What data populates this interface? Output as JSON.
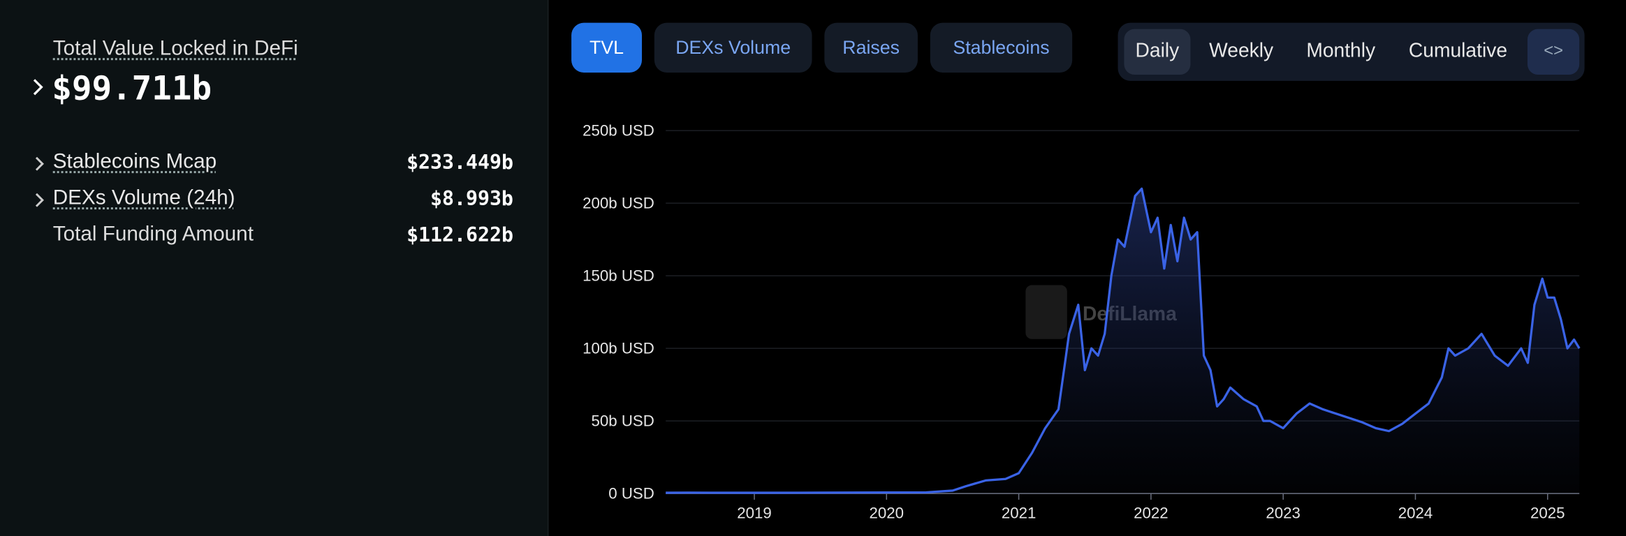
{
  "sidebar": {
    "title": "Total Value Locked in DeFi",
    "value": "$99.711b",
    "rows": [
      {
        "label": "Stablecoins Mcap",
        "value": "$233.449b"
      },
      {
        "label": "DEXs Volume (24h)",
        "value": "$8.993b"
      },
      {
        "label": "Total Funding Amount",
        "value": "$112.622b"
      }
    ]
  },
  "tabs": [
    "TVL",
    "DEXs Volume",
    "Raises",
    "Stablecoins"
  ],
  "periods": [
    "Daily",
    "Weekly",
    "Monthly",
    "Cumulative"
  ],
  "embed": "<>",
  "chart_data": {
    "type": "line",
    "watermark": "DefiLlama",
    "color": "#3a63e6",
    "x": [
      2018.33,
      2018.5,
      2019.0,
      2019.5,
      2020.0,
      2020.3,
      2020.5,
      2020.6,
      2020.75,
      2020.9,
      2021.0,
      2021.1,
      2021.2,
      2021.3,
      2021.35,
      2021.38,
      2021.45,
      2021.5,
      2021.55,
      2021.6,
      2021.65,
      2021.7,
      2021.75,
      2021.8,
      2021.88,
      2021.93,
      2022.0,
      2022.05,
      2022.1,
      2022.15,
      2022.2,
      2022.25,
      2022.3,
      2022.35,
      2022.4,
      2022.45,
      2022.5,
      2022.55,
      2022.6,
      2022.7,
      2022.8,
      2022.85,
      2022.9,
      2023.0,
      2023.1,
      2023.2,
      2023.3,
      2023.4,
      2023.5,
      2023.6,
      2023.7,
      2023.8,
      2023.9,
      2024.0,
      2024.1,
      2024.2,
      2024.25,
      2024.3,
      2024.4,
      2024.5,
      2024.6,
      2024.7,
      2024.8,
      2024.85,
      2024.9,
      2024.96,
      2025.0,
      2025.05,
      2025.1,
      2025.15,
      2025.2,
      2025.24
    ],
    "values": [
      0.5,
      0.6,
      0.5,
      0.6,
      0.7,
      0.8,
      2,
      5,
      9,
      10,
      14,
      28,
      45,
      58,
      90,
      110,
      130,
      85,
      100,
      95,
      110,
      150,
      175,
      170,
      205,
      210,
      180,
      190,
      155,
      185,
      160,
      190,
      175,
      180,
      95,
      85,
      60,
      65,
      73,
      65,
      60,
      50,
      50,
      45,
      55,
      62,
      58,
      55,
      52,
      49,
      45,
      43,
      48,
      55,
      62,
      80,
      100,
      95,
      100,
      110,
      95,
      88,
      100,
      90,
      130,
      148,
      135,
      135,
      120,
      100,
      106,
      100
    ],
    "xlim": [
      2018.33,
      2025.24
    ],
    "ylim": [
      0,
      250
    ],
    "xticks": [
      2019,
      2020,
      2021,
      2022,
      2023,
      2024,
      2025
    ],
    "yticks": [
      {
        "value": 0,
        "label": "0 USD"
      },
      {
        "value": 50,
        "label": "50b USD"
      },
      {
        "value": 100,
        "label": "100b USD"
      },
      {
        "value": 150,
        "label": "150b USD"
      },
      {
        "value": 200,
        "label": "200b USD"
      },
      {
        "value": 250,
        "label": "250b USD"
      }
    ],
    "grid": true
  }
}
